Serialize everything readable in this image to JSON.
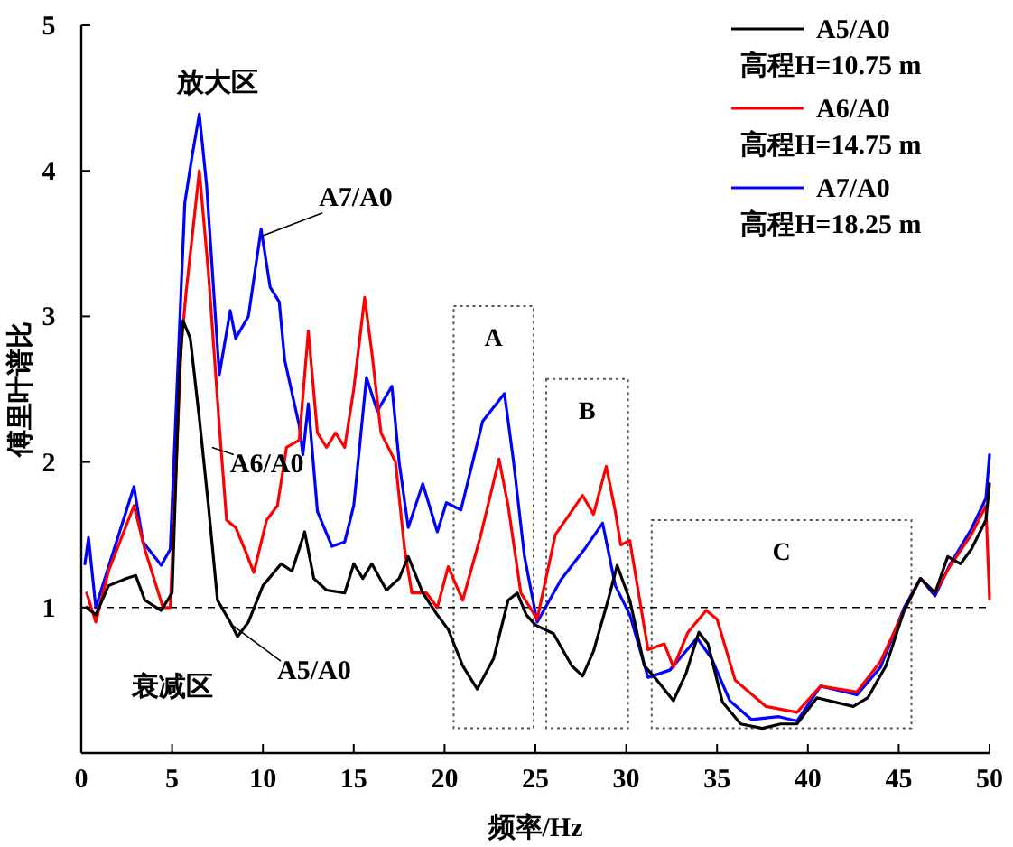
{
  "chart_data": {
    "type": "line",
    "xlabel": "频率/Hz",
    "ylabel": "傅里叶谱比",
    "xlim": [
      0,
      50
    ],
    "xticks": [
      0,
      5,
      10,
      15,
      20,
      25,
      30,
      35,
      40,
      45,
      50
    ],
    "ylim": [
      0,
      5
    ],
    "yticks": [
      1,
      2,
      3,
      4,
      5
    ],
    "grid": false,
    "legend": "top right",
    "line_style": "solid",
    "marker": "none",
    "series": [
      {
        "name": "A5/A0\n高程H=10.75 m",
        "color": "#000000",
        "x": [
          0.3,
          0.8,
          1.5,
          2.5,
          3.0,
          3.5,
          4.4,
          5.0,
          5.4,
          5.6,
          6.0,
          6.5,
          7.0,
          7.5,
          8.2,
          8.6,
          9.2,
          10.0,
          11.0,
          11.6,
          12.3,
          12.8,
          13.5,
          14.5,
          15.0,
          15.5,
          16.0,
          16.8,
          17.5,
          18.0,
          18.8,
          19.6,
          20.2,
          21.0,
          21.8,
          22.7,
          23.5,
          24.0,
          24.5,
          25.0,
          26.0,
          27.0,
          27.6,
          28.2,
          29.0,
          29.5,
          30.2,
          31.0,
          31.7,
          32.6,
          33.3,
          34.0,
          34.5,
          35.3,
          36.3,
          37.5,
          38.5,
          39.4,
          40.5,
          41.5,
          42.5,
          43.3,
          44.3,
          45.3,
          46.2,
          47.0,
          47.7,
          48.4,
          49.0,
          49.8,
          50.0
        ],
        "values": [
          1.0,
          0.95,
          1.15,
          1.2,
          1.22,
          1.05,
          0.98,
          1.1,
          2.6,
          2.97,
          2.85,
          2.3,
          1.7,
          1.05,
          0.9,
          0.8,
          0.9,
          1.15,
          1.3,
          1.25,
          1.52,
          1.2,
          1.12,
          1.1,
          1.3,
          1.2,
          1.3,
          1.12,
          1.2,
          1.35,
          1.1,
          0.95,
          0.85,
          0.6,
          0.44,
          0.65,
          1.05,
          1.1,
          0.95,
          0.88,
          0.82,
          0.6,
          0.53,
          0.7,
          1.05,
          1.29,
          1.05,
          0.6,
          0.5,
          0.36,
          0.55,
          0.83,
          0.75,
          0.35,
          0.2,
          0.17,
          0.2,
          0.2,
          0.38,
          0.35,
          0.32,
          0.38,
          0.6,
          0.98,
          1.2,
          1.1,
          1.35,
          1.3,
          1.4,
          1.6,
          1.85
        ]
      },
      {
        "name": "A6/A0\n高程H=14.75 m",
        "color": "#ff0000",
        "x": [
          0.3,
          0.8,
          1.5,
          2.9,
          3.5,
          4.5,
          4.9,
          5.5,
          5.8,
          6.5,
          7.0,
          7.6,
          8.0,
          8.5,
          9.0,
          9.5,
          10.2,
          10.8,
          11.3,
          12.0,
          12.5,
          13.0,
          13.5,
          14.0,
          14.5,
          15.0,
          15.6,
          16.0,
          16.5,
          17.3,
          17.8,
          18.2,
          19.0,
          19.6,
          20.2,
          21.0,
          22.0,
          23.0,
          23.5,
          24.2,
          25.1,
          26.1,
          27.6,
          28.2,
          28.9,
          29.4,
          29.7,
          30.2,
          31.2,
          32.1,
          32.6,
          33.4,
          34.4,
          35.0,
          36.0,
          37.7,
          39.4,
          40.7,
          42.7,
          44.0,
          45.3,
          46.2,
          47.0,
          47.8,
          49.0,
          49.8,
          50.0
        ],
        "values": [
          1.1,
          0.9,
          1.25,
          1.7,
          1.4,
          1.0,
          1.0,
          2.8,
          3.2,
          4.0,
          3.3,
          2.25,
          1.6,
          1.55,
          1.4,
          1.24,
          1.6,
          1.7,
          2.1,
          2.15,
          2.9,
          2.2,
          2.1,
          2.2,
          2.1,
          2.5,
          3.13,
          2.75,
          2.2,
          2.0,
          1.4,
          1.1,
          1.1,
          1.0,
          1.28,
          1.05,
          1.5,
          2.02,
          1.7,
          1.1,
          0.92,
          1.5,
          1.77,
          1.64,
          1.97,
          1.66,
          1.43,
          1.46,
          0.71,
          0.75,
          0.59,
          0.83,
          0.98,
          0.92,
          0.5,
          0.32,
          0.28,
          0.46,
          0.42,
          0.63,
          0.98,
          1.2,
          1.1,
          1.28,
          1.5,
          1.7,
          1.06
        ]
      },
      {
        "name": "A7/A0\n高程H=18.25 m",
        "color": "#0000ff",
        "x": [
          0.2,
          0.4,
          0.8,
          1.3,
          2.9,
          3.4,
          4.4,
          4.9,
          5.4,
          5.7,
          6.1,
          6.5,
          6.9,
          7.6,
          8.2,
          8.5,
          9.2,
          9.9,
          10.4,
          10.9,
          11.2,
          12.0,
          12.2,
          12.5,
          13.0,
          13.8,
          14.5,
          15.0,
          15.7,
          16.3,
          17.1,
          17.5,
          18.0,
          18.8,
          19.6,
          20.1,
          20.9,
          22.1,
          23.3,
          23.8,
          24.4,
          25.1,
          26.4,
          27.7,
          28.7,
          29.4,
          30.2,
          31.2,
          32.4,
          33.9,
          34.7,
          35.7,
          36.9,
          38.4,
          39.4,
          40.7,
          42.7,
          44.0,
          45.3,
          46.2,
          47.0,
          47.8,
          49.0,
          49.8,
          50.0
        ],
        "values": [
          1.3,
          1.48,
          1.0,
          1.2,
          1.83,
          1.45,
          1.29,
          1.4,
          2.9,
          3.78,
          4.1,
          4.39,
          3.9,
          2.6,
          3.04,
          2.85,
          3.0,
          3.6,
          3.2,
          3.1,
          2.7,
          2.25,
          2.05,
          2.4,
          1.66,
          1.42,
          1.45,
          1.7,
          2.58,
          2.35,
          2.52,
          2.0,
          1.55,
          1.85,
          1.52,
          1.72,
          1.67,
          2.28,
          2.47,
          2.0,
          1.35,
          0.9,
          1.19,
          1.4,
          1.58,
          1.15,
          0.95,
          0.52,
          0.57,
          0.79,
          0.65,
          0.36,
          0.23,
          0.25,
          0.22,
          0.46,
          0.4,
          0.59,
          1.0,
          1.2,
          1.08,
          1.29,
          1.54,
          1.75,
          2.05
        ]
      }
    ],
    "ref_lines": [
      {
        "axis": "y",
        "value": 1,
        "color": "#000000",
        "line_style": "dashed"
      }
    ],
    "bands": [
      {
        "axis": "x",
        "from": 20.5,
        "to": 24.9,
        "label": "A"
      },
      {
        "axis": "x",
        "from": 25.6,
        "to": 30.1,
        "label": "B"
      },
      {
        "axis": "x",
        "from": 31.4,
        "to": 45.7,
        "label": "C"
      }
    ],
    "annotations": [
      "放大区",
      "衰减区",
      {
        "text": "A7/A0",
        "x": 9.9,
        "y": 3.55
      },
      {
        "text": "A6/A0",
        "x": 7.2,
        "y": 2.1
      },
      {
        "text": "A5/A0",
        "x": 8.3,
        "y": 0.88
      }
    ]
  }
}
